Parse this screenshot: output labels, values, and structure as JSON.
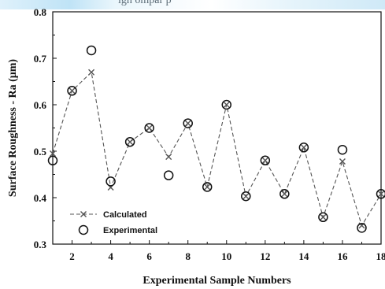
{
  "header_strip": {
    "text": "igh    ompar    p"
  },
  "chart_data": {
    "type": "line",
    "title": "",
    "xlabel": "Experimental Sample Numbers",
    "ylabel": "Surface Roughness - Ra (μm)",
    "xlim": [
      1,
      18
    ],
    "ylim": [
      0.3,
      0.8
    ],
    "x_ticks": [
      2,
      4,
      6,
      8,
      10,
      12,
      14,
      16,
      18
    ],
    "y_ticks": [
      "0.3",
      "0.4",
      "0.5",
      "0.6",
      "0.7",
      "0.8"
    ],
    "grid": false,
    "legend_position": "bottom-left",
    "x": [
      1,
      2,
      3,
      4,
      5,
      6,
      7,
      8,
      9,
      10,
      11,
      12,
      13,
      14,
      15,
      16,
      17,
      18
    ],
    "series": [
      {
        "name": "Calculated",
        "style": "dashed-line-with-x-markers",
        "color": "#555555",
        "values": [
          0.495,
          0.63,
          0.67,
          0.422,
          0.52,
          0.55,
          0.488,
          0.56,
          0.423,
          0.6,
          0.403,
          0.48,
          0.408,
          0.508,
          0.358,
          0.478,
          0.34,
          0.408
        ]
      },
      {
        "name": "Experimental",
        "style": "open-circle-markers",
        "color": "#111111",
        "values": [
          0.48,
          0.63,
          0.717,
          0.435,
          0.52,
          0.55,
          0.448,
          0.56,
          0.423,
          0.6,
          0.403,
          0.48,
          0.408,
          0.508,
          0.358,
          0.503,
          0.335,
          0.408
        ]
      }
    ]
  }
}
